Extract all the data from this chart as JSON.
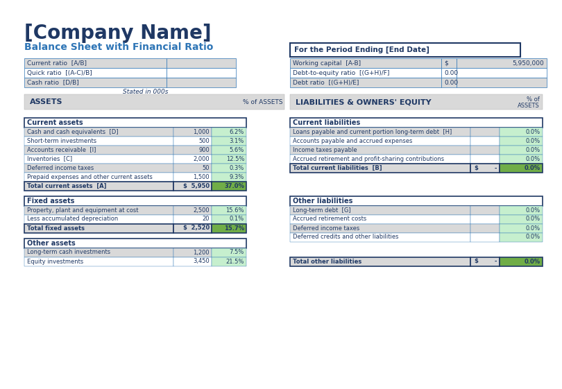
{
  "company_name": "[Company Name]",
  "subtitle": "Balance Sheet with Financial Ratio",
  "period_label": "For the Period Ending [End Date]",
  "stated_in": "Stated in 000s",
  "bg_color": "#FFFFFF",
  "dark_blue": "#1F3864",
  "medium_blue": "#2E75B6",
  "light_gray": "#D9D9D9",
  "teal_green": "#70AD47",
  "pct_col_bg": "#C6EFCE",
  "header_bg": "#D9D9D9",
  "white": "#FFFFFF",
  "border_teal": "#17375E",
  "ratios_left": [
    [
      "Current ratio  [A/B]",
      ""
    ],
    [
      "Quick ratio  [(A-C)/B]",
      ""
    ],
    [
      "Cash ratio  [D/B]",
      ""
    ]
  ],
  "ratios_right": [
    [
      "Working capital  [A-B]",
      "$",
      "5,950,000"
    ],
    [
      "Debt-to-equity ratio  [(G+H)/F]",
      "0.00",
      ""
    ],
    [
      "Debt ratio  [(G+H)/E]",
      "0.00",
      ""
    ]
  ],
  "current_assets_rows": [
    [
      "Cash and cash equivalents  [D]",
      "1,000",
      "6.2%"
    ],
    [
      "Short-term investments",
      "500",
      "3.1%"
    ],
    [
      "Accounts receivable  [I]",
      "900",
      "5.6%"
    ],
    [
      "Inventories  [C]",
      "2,000",
      "12.5%"
    ],
    [
      "Deferred income taxes",
      "50",
      "0.3%"
    ],
    [
      "Prepaid expenses and other current assets",
      "1,500",
      "9.3%"
    ]
  ],
  "total_current_assets": [
    "Total current assets  [A]",
    "$  5,950",
    "37.0%"
  ],
  "fixed_assets_rows": [
    [
      "Property, plant and equipment at cost",
      "2,500",
      "15.6%"
    ],
    [
      "Less accumulated depreciation",
      "20",
      "0.1%"
    ]
  ],
  "total_fixed_assets": [
    "Total fixed assets",
    "$  2,520",
    "15.7%"
  ],
  "other_assets_rows": [
    [
      "Long-term cash investments",
      "1,200",
      "7.5%"
    ],
    [
      "Equity investments",
      "3,450",
      "21.5%"
    ]
  ],
  "current_liab_rows": [
    [
      "Loans payable and current portion long-term debt  [H]",
      "",
      "0.0%"
    ],
    [
      "Accounts payable and accrued expenses",
      "",
      "0.0%"
    ],
    [
      "Income taxes payable",
      "",
      "0.0%"
    ],
    [
      "Accrued retirement and profit-sharing contributions",
      "",
      "0.0%"
    ]
  ],
  "total_current_liab": [
    "Total current liabilities  [B]",
    "$        -",
    "0.0%"
  ],
  "other_liab_rows": [
    [
      "Long-term debt  [G]",
      "",
      "0.0%"
    ],
    [
      "Accrued retirement costs",
      "",
      "0.0%"
    ],
    [
      "Deferred income taxes",
      "",
      "0.0%"
    ],
    [
      "Deferred credits and other liabilities",
      "",
      "0.0%"
    ]
  ],
  "total_other_liab": [
    "Total other liabilities",
    "$        -",
    "0.0%"
  ]
}
